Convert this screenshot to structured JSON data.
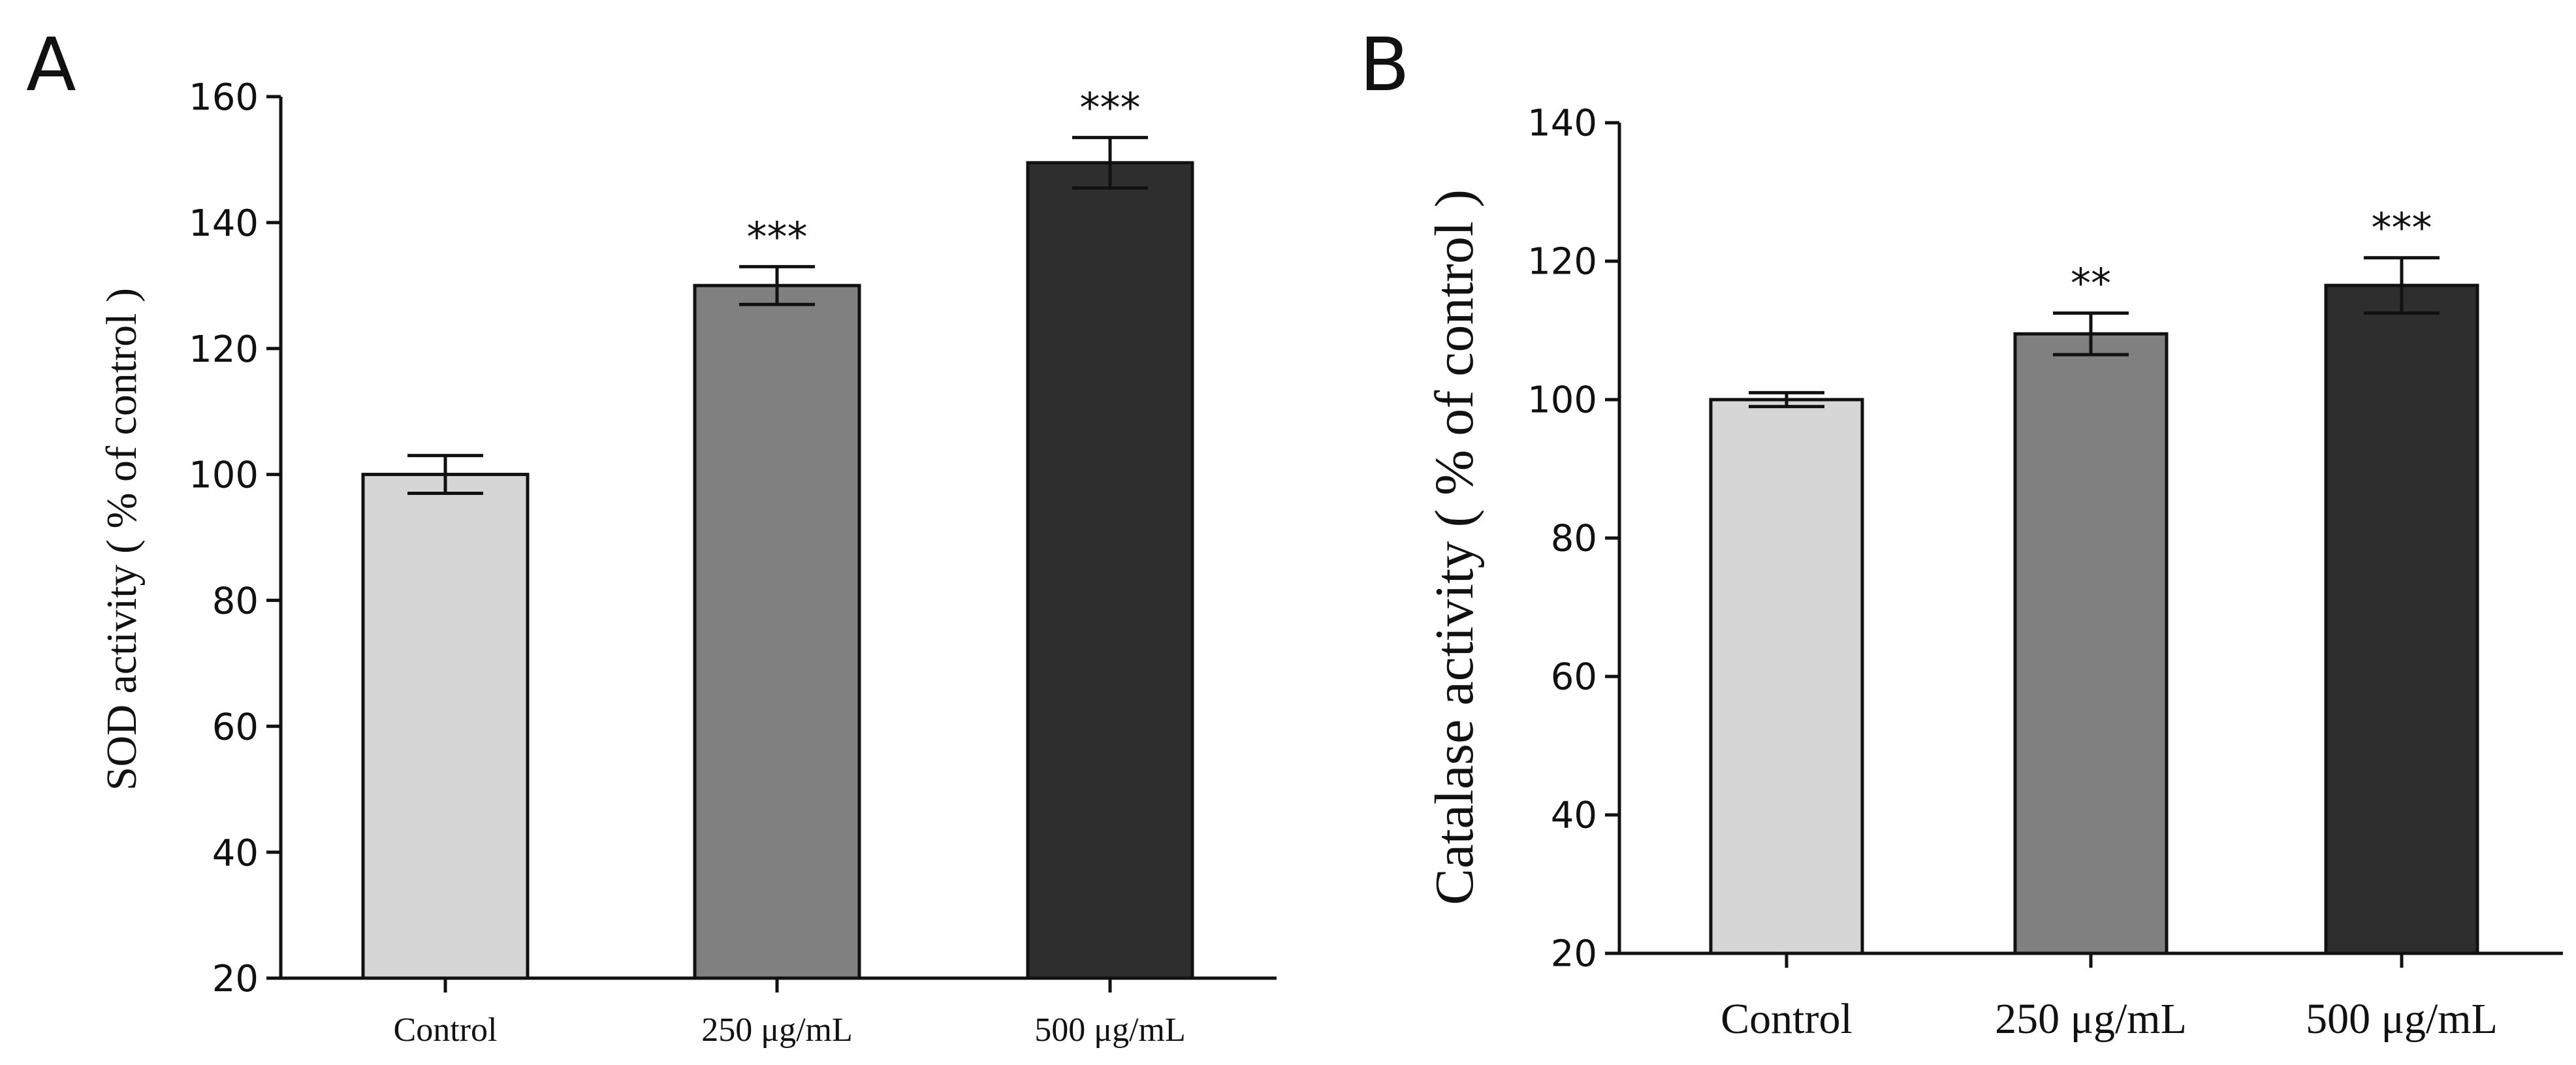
{
  "chart_data": [
    {
      "type": "bar",
      "panel": "A",
      "title": "",
      "xlabel": "",
      "ylabel": "SOD activity ( % of control )",
      "ylim": [
        20,
        160
      ],
      "yticks": [
        20,
        40,
        60,
        80,
        100,
        120,
        140,
        160
      ],
      "categories": [
        "Control",
        "250 μg/mL",
        "500 μg/mL"
      ],
      "values": [
        100,
        130,
        149.5
      ],
      "errors": [
        3,
        3,
        4
      ],
      "significance": [
        "",
        "***",
        "***"
      ],
      "colors": [
        "#d6d6d6",
        "#808080",
        "#2e2e2e"
      ]
    },
    {
      "type": "bar",
      "panel": "B",
      "title": "",
      "xlabel": "",
      "ylabel": "Catalase activity ( % of control )",
      "ylim": [
        20,
        140
      ],
      "yticks": [
        20,
        40,
        60,
        80,
        100,
        120,
        140
      ],
      "categories": [
        "Control",
        "250 μg/mL",
        "500 μg/mL"
      ],
      "values": [
        100,
        109.5,
        116.5
      ],
      "errors": [
        1,
        3,
        4
      ],
      "significance": [
        "",
        "**",
        "***"
      ],
      "colors": [
        "#d6d6d6",
        "#808080",
        "#2e2e2e"
      ]
    }
  ]
}
